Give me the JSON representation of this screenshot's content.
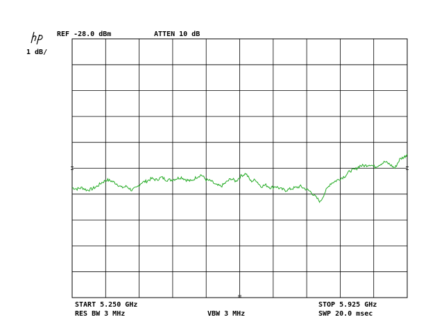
{
  "header": {
    "logo_text": "hp",
    "ref_level": "REF -28.0 dBm",
    "attenuation": "ATTEN 10 dB",
    "scale": "1 dB/"
  },
  "footer": {
    "start_freq": "START 5.250 GHz",
    "stop_freq": "STOP 5.925 GHz",
    "res_bw": "RES BW 3 MHz",
    "vbw": "VBW 3 MHz",
    "sweep": "SWP 20.0 msec"
  },
  "colors": {
    "trace": "#22aa22",
    "grid": "#000000"
  },
  "chart_data": {
    "type": "line",
    "x_unit": "GHz",
    "y_unit": "dBm",
    "xlim": [
      5.25,
      5.925
    ],
    "ylim": [
      -38.0,
      -28.0
    ],
    "grid": true,
    "grid_divisions": {
      "x": 10,
      "y": 10
    },
    "reference_marker_y": -33.0,
    "series": [
      {
        "x": [
          5.25,
          5.26,
          5.27,
          5.28,
          5.29,
          5.3,
          5.31,
          5.32,
          5.33,
          5.34,
          5.35,
          5.36,
          5.37,
          5.38,
          5.39,
          5.4,
          5.41,
          5.42,
          5.43,
          5.44,
          5.45,
          5.46,
          5.47,
          5.48,
          5.49,
          5.5,
          5.51,
          5.52,
          5.53,
          5.54,
          5.55,
          5.56,
          5.57,
          5.58,
          5.59,
          5.6,
          5.61,
          5.62,
          5.63,
          5.64,
          5.65,
          5.66,
          5.67,
          5.68,
          5.69,
          5.7,
          5.71,
          5.72,
          5.73,
          5.74,
          5.75,
          5.76,
          5.77,
          5.78,
          5.79,
          5.8,
          5.81,
          5.82,
          5.83,
          5.84,
          5.85,
          5.86,
          5.87,
          5.88,
          5.89,
          5.9,
          5.91,
          5.92,
          5.925
        ],
        "y": [
          -33.75,
          -33.8,
          -33.75,
          -33.85,
          -33.8,
          -33.7,
          -33.55,
          -33.45,
          -33.5,
          -33.6,
          -33.75,
          -33.7,
          -33.85,
          -33.75,
          -33.55,
          -33.5,
          -33.4,
          -33.45,
          -33.35,
          -33.45,
          -33.45,
          -33.4,
          -33.35,
          -33.45,
          -33.5,
          -33.35,
          -33.25,
          -33.45,
          -33.5,
          -33.65,
          -33.7,
          -33.55,
          -33.4,
          -33.5,
          -33.3,
          -33.2,
          -33.5,
          -33.45,
          -33.7,
          -33.65,
          -33.75,
          -33.7,
          -33.8,
          -33.85,
          -33.8,
          -33.75,
          -33.7,
          -33.8,
          -33.9,
          -34.1,
          -34.3,
          -33.9,
          -33.6,
          -33.5,
          -33.4,
          -33.3,
          -33.1,
          -33.05,
          -32.9,
          -32.9,
          -32.85,
          -32.95,
          -32.85,
          -32.75,
          -32.85,
          -33.0,
          -32.65,
          -32.55,
          -32.45
        ]
      }
    ]
  }
}
